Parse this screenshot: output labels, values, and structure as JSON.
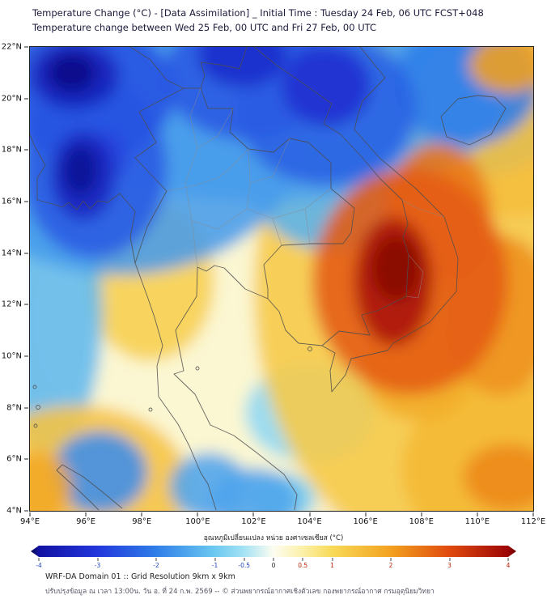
{
  "header": {
    "title_line1": "Temperature Change (°C) - [Data Assimilation] _ Initial Time : Tuesday 24 Feb, 06 UTC FCST+048",
    "title_line2": "Temperature change between Wed 25 Feb, 00 UTC and Fri 27 Feb, 00 UTC"
  },
  "axes": {
    "y_ticks": [
      "22°N",
      "20°N",
      "18°N",
      "16°N",
      "14°N",
      "12°N",
      "10°N",
      "8°N",
      "6°N",
      "4°N"
    ],
    "x_ticks": [
      "94°E",
      "96°E",
      "98°E",
      "100°E",
      "102°E",
      "104°E",
      "106°E",
      "108°E",
      "110°E",
      "112°E"
    ]
  },
  "colorbar": {
    "title": "อุณหภูมิเปลี่ยนแปลง หน่วย องศาเซลเซียส (°C)",
    "min": -4,
    "max": 4,
    "ticks": [
      {
        "value": -4,
        "label": "-4"
      },
      {
        "value": -3,
        "label": "-3"
      },
      {
        "value": -2,
        "label": "-2"
      },
      {
        "value": -1,
        "label": "-1"
      },
      {
        "value": -0.5,
        "label": "-0.5"
      },
      {
        "value": 0,
        "label": "0"
      },
      {
        "value": 0.5,
        "label": "0.5"
      },
      {
        "value": 1,
        "label": "1"
      },
      {
        "value": 2,
        "label": "2"
      },
      {
        "value": 3,
        "label": "3"
      },
      {
        "value": 4,
        "label": "4"
      }
    ],
    "negative_label_color": "#2244bb",
    "positive_label_color": "#bb2200",
    "zero_label_color": "#222222",
    "gradient": [
      [
        -4.6,
        "#08084e"
      ],
      [
        -4,
        "#1212a2"
      ],
      [
        -3,
        "#2236dc"
      ],
      [
        -2,
        "#2f7ee8"
      ],
      [
        -1,
        "#6cc9f0"
      ],
      [
        -0.5,
        "#a5e2f5"
      ],
      [
        0,
        "#fdfdf0"
      ],
      [
        0.5,
        "#fbf0a8"
      ],
      [
        1,
        "#f8da58"
      ],
      [
        2,
        "#f2a11f"
      ],
      [
        3,
        "#e04a0e"
      ],
      [
        4,
        "#9c0606"
      ],
      [
        4.6,
        "#6e0404"
      ]
    ]
  },
  "footer": {
    "line1": "WRF-DA Domain 01 :: Grid Resolution 9km x 9km",
    "line2": "ปรับปรุงข้อมูล ณ เวลา 13:00น. วัน อ. ที่ 24 ก.พ. 2569 -- © ส่วนพยากรณ์อากาศเชิงตัวเลข กองพยากรณ์อากาศ กรมอุตุนิยมวิทยา"
  },
  "chart_data": {
    "type": "heatmap",
    "title": "Temperature change between Wed 25 Feb, 00 UTC and Fri 27 Feb, 00 UTC",
    "x": {
      "label": "Longitude",
      "unit": "°E",
      "range": [
        94,
        112
      ],
      "tick_step": 2
    },
    "y": {
      "label": "Latitude",
      "unit": "°N",
      "range": [
        4,
        22
      ],
      "tick_step": 2
    },
    "value_unit": "°C",
    "value_range": [
      -4,
      4
    ],
    "base_value": 0.4,
    "features": [
      {
        "name": "neutral-center",
        "lon": 100.8,
        "lat": 11.5,
        "extent_deg": [
          6.5,
          6.3
        ],
        "value": 0.2
      },
      {
        "lon": 104.0,
        "lat": 7.8,
        "extent_deg": [
          2.3,
          1.9
        ],
        "value": -0.7
      },
      {
        "lon": 103.0,
        "lat": 4.5,
        "extent_deg": [
          1.2,
          0.95
        ],
        "value": -0.9
      },
      {
        "lon": 98.3,
        "lat": 12.9,
        "extent_deg": [
          2.3,
          3.1
        ],
        "value": 1.2
      },
      {
        "lon": 94.6,
        "lat": 11.6,
        "extent_deg": [
          2.0,
          5.3
        ],
        "value": -1.2
      },
      {
        "lon": 107.0,
        "lat": 21.3,
        "extent_deg": [
          1.7,
          1.6
        ],
        "value": -1.2
      },
      {
        "name": "broad-warming-east",
        "lon": 109.0,
        "lat": 12.5,
        "extent_deg": [
          7.0,
          10.5
        ],
        "value": 1.3
      },
      {
        "lon": 104.7,
        "lat": 17.9,
        "extent_deg": [
          3.2,
          3.8
        ],
        "value": -1.3
      },
      {
        "lon": 109.8,
        "lat": 20.1,
        "extent_deg": [
          3.8,
          3.1
        ],
        "value": -1.3
      },
      {
        "lon": 95.7,
        "lat": 5.0,
        "extent_deg": [
          4.0,
          3.1
        ],
        "value": 1.4
      },
      {
        "lon": 94.2,
        "lat": 21.4,
        "extent_deg": [
          1.7,
          1.4
        ],
        "value": 1.5
      },
      {
        "lon": 111.3,
        "lat": 19.2,
        "extent_deg": [
          3.8,
          3.8
        ],
        "value": 1.5
      },
      {
        "lon": 100.4,
        "lat": 4.95,
        "extent_deg": [
          1.4,
          1.3
        ],
        "value": -1.5
      },
      {
        "lon": 102.0,
        "lat": 4.4,
        "extent_deg": [
          1.6,
          1.26
        ],
        "value": -1.5
      },
      {
        "name": "cooling-band-north",
        "lon": 102.4,
        "lat": 20.1,
        "extent_deg": [
          8.7,
          4.1
        ],
        "value": -1.5
      },
      {
        "lon": 111.1,
        "lat": 5.6,
        "extent_deg": [
          3.8,
          3.5
        ],
        "value": 1.6
      },
      {
        "name": "cooling-region-northwest",
        "lon": 97.2,
        "lat": 18.85,
        "extent_deg": [
          6.7,
          5.7
        ],
        "value": -1.6
      },
      {
        "lon": 96.5,
        "lat": 5.5,
        "extent_deg": [
          1.7,
          1.6
        ],
        "value": -1.8
      },
      {
        "lon": 107.9,
        "lat": 9.4,
        "extent_deg": [
          2.0,
          1.9
        ],
        "value": 1.8
      },
      {
        "lon": 94.3,
        "lat": 4.9,
        "extent_deg": [
          1.2,
          1.4
        ],
        "value": 1.9
      },
      {
        "lon": 109.6,
        "lat": 20.6,
        "extent_deg": [
          2.6,
          2.4
        ],
        "value": -2.0
      },
      {
        "lon": 111.1,
        "lat": 21.3,
        "extent_deg": [
          1.4,
          1.1
        ],
        "value": 2.0
      },
      {
        "lon": 110.8,
        "lat": 11.6,
        "extent_deg": [
          2.0,
          3.1
        ],
        "value": 2.2
      },
      {
        "lon": 111.1,
        "lat": 5.3,
        "extent_deg": [
          1.6,
          1.3
        ],
        "value": 2.3
      },
      {
        "lon": 104.6,
        "lat": 19.6,
        "extent_deg": [
          3.2,
          3.0
        ],
        "value": -2.4
      },
      {
        "lon": 96.3,
        "lat": 17.3,
        "extent_deg": [
          2.6,
          3.5
        ],
        "value": -2.5
      },
      {
        "lon": 101.7,
        "lat": 20.9,
        "extent_deg": [
          2.9,
          2.5
        ],
        "value": -2.5
      },
      {
        "lon": 108.6,
        "lat": 15.55,
        "extent_deg": [
          1.9,
          2.7
        ],
        "value": 2.5
      },
      {
        "lon": 96.0,
        "lat": 20.3,
        "extent_deg": [
          3.2,
          2.7
        ],
        "value": -2.6
      },
      {
        "lon": 96.8,
        "lat": 17.8,
        "extent_deg": [
          0.72,
          0.94
        ],
        "value": -2.8
      },
      {
        "name": "warming-halo-southeast",
        "lon": 107.6,
        "lat": 12.9,
        "extent_deg": [
          3.5,
          4.4
        ],
        "value": 2.8
      },
      {
        "name": "cooling-core-northeast",
        "lon": 104.6,
        "lat": 20.5,
        "extent_deg": [
          1.6,
          1.57
        ],
        "value": -3.2
      },
      {
        "name": "cooling-core-north",
        "lon": 101.6,
        "lat": 21.7,
        "extent_deg": [
          1.6,
          1.26
        ],
        "value": -3.3
      },
      {
        "name": "cooling-core-west",
        "lon": 95.9,
        "lat": 17.0,
        "extent_deg": [
          1.16,
          1.73
        ],
        "value": -3.5
      },
      {
        "name": "cooling-core-northwest",
        "lon": 95.6,
        "lat": 20.9,
        "extent_deg": [
          1.6,
          1.32
        ],
        "value": -3.6
      },
      {
        "name": "warming-core",
        "lon": 107.0,
        "lat": 12.9,
        "extent_deg": [
          1.4,
          2.5
        ],
        "value": 3.8
      },
      {
        "lon": 95.8,
        "lat": 17.2,
        "extent_deg": [
          0.64,
          1.0
        ],
        "value": -4.1
      },
      {
        "lon": 95.5,
        "lat": 21.0,
        "extent_deg": [
          0.87,
          0.76
        ],
        "value": -4.2
      },
      {
        "name": "warming-core-max",
        "lon": 107.1,
        "lat": 13.4,
        "extent_deg": [
          0.87,
          1.26
        ],
        "value": 4.3
      }
    ]
  }
}
